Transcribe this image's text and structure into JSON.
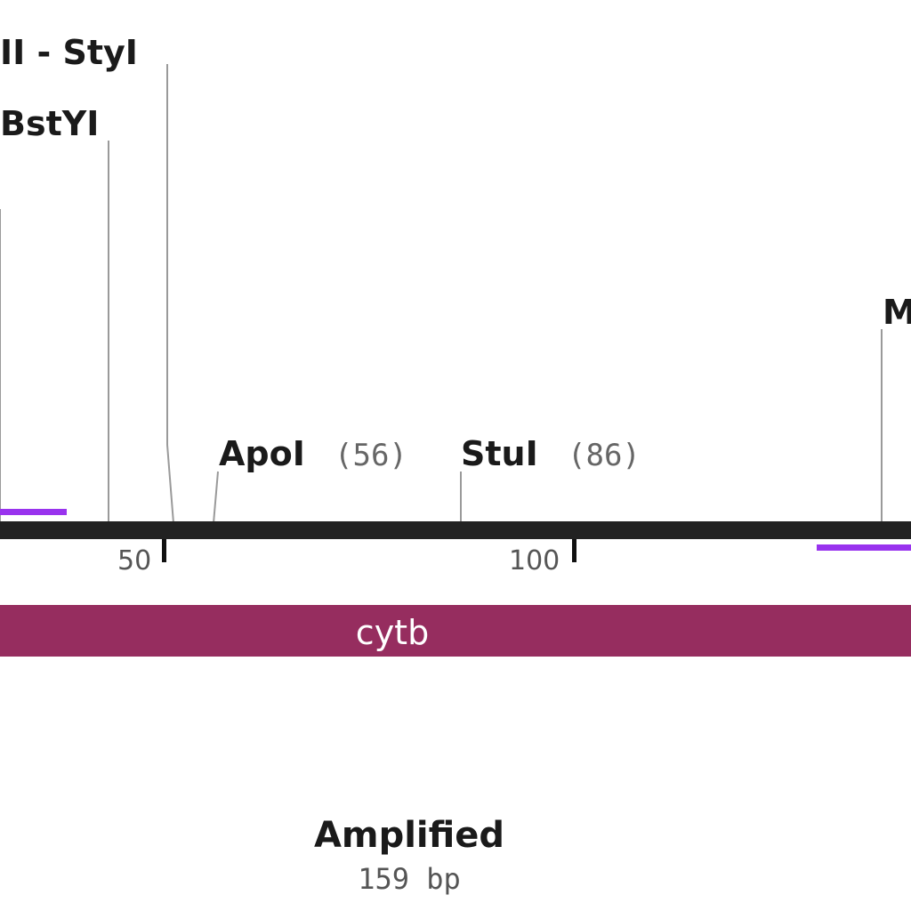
{
  "sites": [
    {
      "id": "styi",
      "label": "II - StyI",
      "position": ""
    },
    {
      "id": "bstyi",
      "label": "BstYI",
      "position": ""
    },
    {
      "id": "apoi",
      "label": "ApoI",
      "position": "(56)"
    },
    {
      "id": "stui",
      "label": "StuI",
      "position": "(86)"
    },
    {
      "id": "m",
      "label": "M",
      "position": ""
    }
  ],
  "ruler": {
    "ticks": [
      "50",
      "100"
    ]
  },
  "feature": {
    "label": "cytb",
    "color": "#962d5f"
  },
  "primer_color": "#9933ee",
  "backbone_color": "#222222",
  "product": {
    "title": "Amplified",
    "size": "159 bp"
  }
}
